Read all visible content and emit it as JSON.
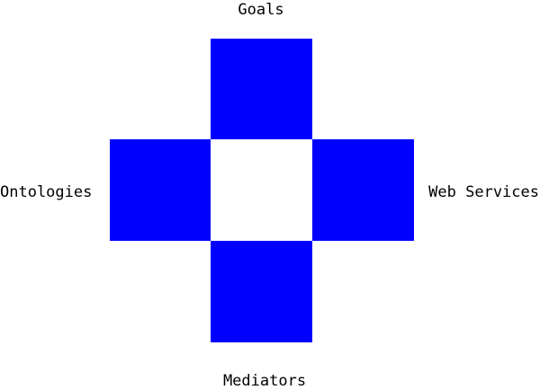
{
  "diagram": {
    "labels": {
      "top": "Goals",
      "left": "Ontologies",
      "right": "Web Services",
      "bottom": "Mediators"
    },
    "colors": {
      "arm": "#0000ff",
      "center": "#ffffff"
    }
  }
}
